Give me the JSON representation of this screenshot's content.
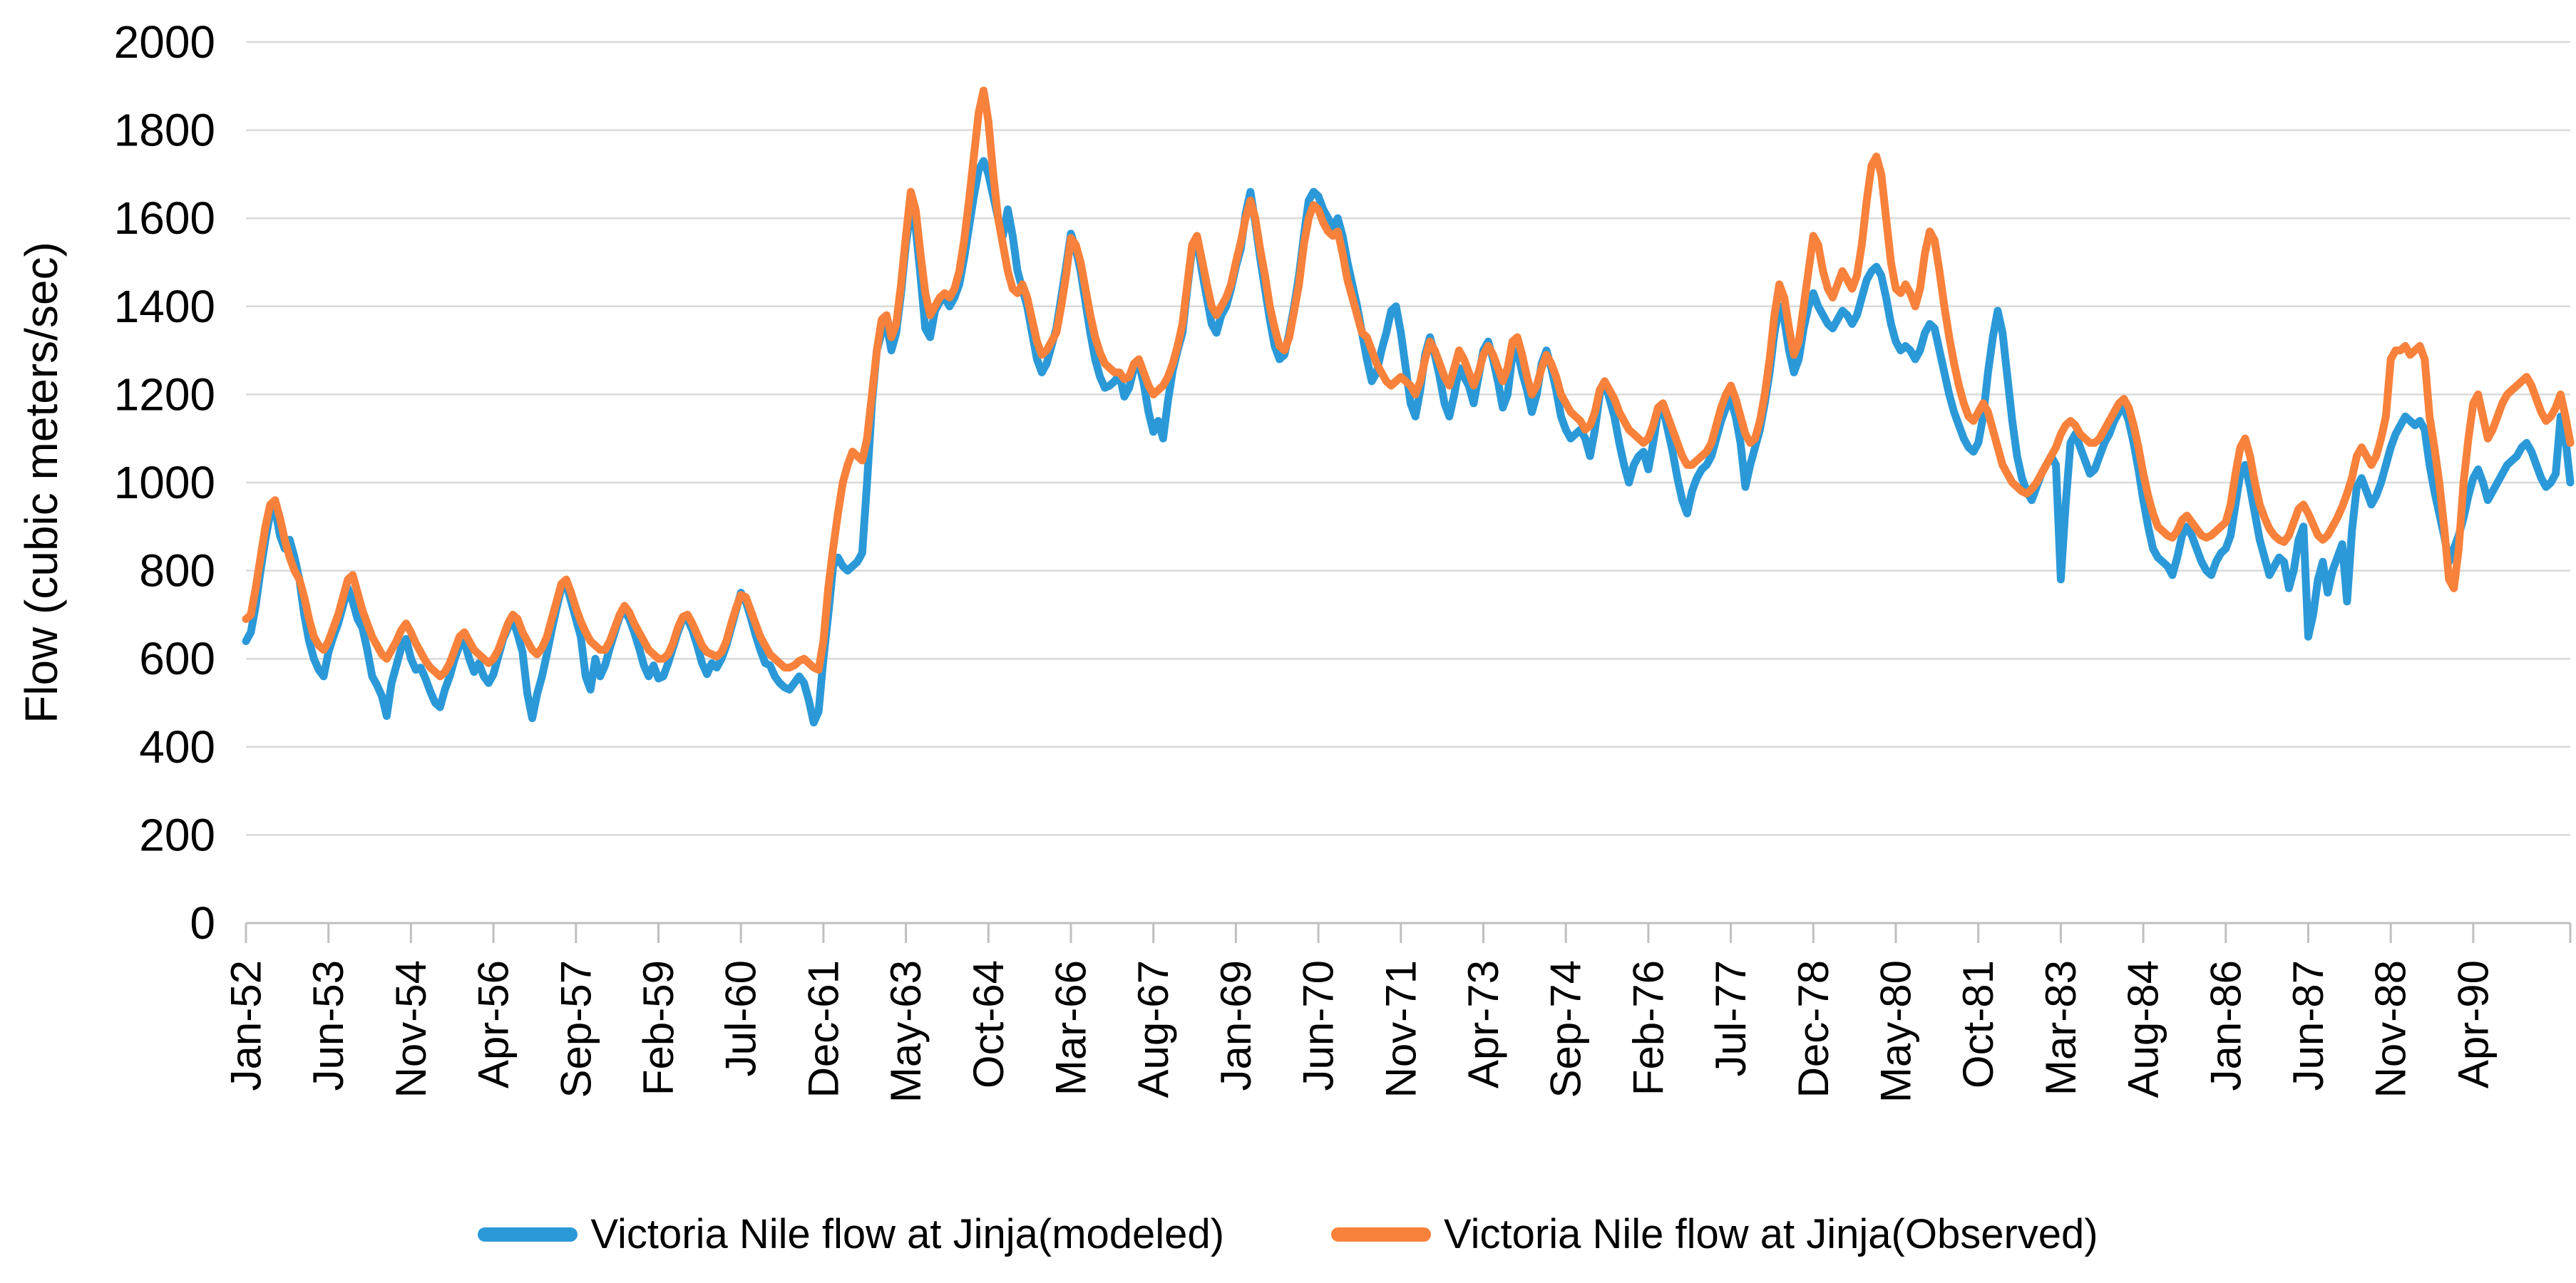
{
  "chart_data": {
    "type": "line",
    "title": "",
    "xlabel": "",
    "ylabel": "Flow (cubic meters/sec)",
    "ylim": [
      0,
      2000
    ],
    "y_tick_step": 200,
    "grid": "horizontal-only",
    "legend_position": "bottom",
    "x_start": "Jan-52",
    "x_frequency": "monthly",
    "x_tick_every_months": 17,
    "x_tick_labels": [
      "Jan-52",
      "Jun-53",
      "Nov-54",
      "Apr-56",
      "Sep-57",
      "Feb-59",
      "Jul-60",
      "Dec-61",
      "May-63",
      "Oct-64",
      "Mar-66",
      "Aug-67",
      "Jan-69",
      "Jun-70",
      "Nov-71",
      "Apr-73",
      "Sep-74",
      "Feb-76",
      "Jul-77",
      "Dec-78",
      "May-80",
      "Oct-81",
      "Mar-83",
      "Aug-84",
      "Jan-86",
      "Jun-87",
      "Nov-88",
      "Apr-90"
    ],
    "axis_color": "#BFBFBF",
    "gridline_color": "#D9D9D9",
    "text_color": "#000000",
    "series": [
      {
        "name": "Victoria Nile flow at Jinja(modeled)",
        "color": "#2B99D8",
        "values": [
          640,
          660,
          720,
          800,
          870,
          930,
          940,
          880,
          850,
          870,
          830,
          780,
          700,
          640,
          600,
          575,
          560,
          615,
          650,
          680,
          720,
          760,
          730,
          690,
          670,
          620,
          560,
          540,
          515,
          470,
          545,
          585,
          625,
          645,
          600,
          575,
          580,
          555,
          525,
          500,
          490,
          530,
          560,
          600,
          630,
          640,
          600,
          570,
          590,
          560,
          545,
          565,
          605,
          645,
          670,
          690,
          655,
          615,
          520,
          465,
          520,
          560,
          610,
          665,
          715,
          760,
          770,
          730,
          690,
          650,
          560,
          530,
          600,
          560,
          585,
          625,
          660,
          695,
          710,
          690,
          660,
          625,
          585,
          560,
          585,
          555,
          560,
          590,
          625,
          660,
          690,
          690,
          665,
          630,
          590,
          565,
          590,
          580,
          600,
          630,
          670,
          710,
          750,
          730,
          695,
          655,
          620,
          590,
          585,
          560,
          545,
          535,
          530,
          545,
          560,
          545,
          505,
          455,
          480,
          600,
          700,
          810,
          830,
          810,
          800,
          810,
          820,
          840,
          1000,
          1180,
          1300,
          1340,
          1360,
          1300,
          1340,
          1430,
          1540,
          1620,
          1580,
          1470,
          1350,
          1330,
          1390,
          1410,
          1420,
          1400,
          1420,
          1450,
          1510,
          1580,
          1650,
          1710,
          1730,
          1700,
          1650,
          1600,
          1560,
          1620,
          1560,
          1480,
          1440,
          1400,
          1340,
          1280,
          1250,
          1270,
          1310,
          1350,
          1420,
          1490,
          1565,
          1530,
          1480,
          1410,
          1340,
          1280,
          1240,
          1215,
          1220,
          1230,
          1245,
          1195,
          1215,
          1260,
          1270,
          1225,
          1160,
          1115,
          1140,
          1100,
          1185,
          1255,
          1300,
          1340,
          1440,
          1530,
          1550,
          1480,
          1420,
          1360,
          1340,
          1380,
          1400,
          1440,
          1490,
          1530,
          1610,
          1660,
          1590,
          1510,
          1440,
          1370,
          1310,
          1280,
          1290,
          1340,
          1400,
          1470,
          1560,
          1640,
          1660,
          1650,
          1620,
          1600,
          1580,
          1600,
          1560,
          1500,
          1450,
          1400,
          1340,
          1280,
          1230,
          1250,
          1300,
          1340,
          1390,
          1400,
          1340,
          1260,
          1180,
          1150,
          1210,
          1290,
          1330,
          1290,
          1240,
          1180,
          1150,
          1200,
          1260,
          1240,
          1220,
          1180,
          1240,
          1300,
          1320,
          1280,
          1230,
          1170,
          1200,
          1290,
          1300,
          1250,
          1210,
          1160,
          1200,
          1270,
          1300,
          1260,
          1210,
          1150,
          1120,
          1100,
          1110,
          1120,
          1100,
          1060,
          1120,
          1200,
          1230,
          1190,
          1150,
          1090,
          1040,
          1000,
          1040,
          1060,
          1070,
          1030,
          1090,
          1160,
          1170,
          1120,
          1070,
          1010,
          960,
          930,
          980,
          1010,
          1030,
          1040,
          1060,
          1100,
          1140,
          1170,
          1190,
          1150,
          1090,
          990,
          1040,
          1080,
          1120,
          1180,
          1250,
          1340,
          1400,
          1370,
          1300,
          1250,
          1280,
          1350,
          1400,
          1430,
          1400,
          1380,
          1360,
          1350,
          1370,
          1390,
          1380,
          1360,
          1380,
          1420,
          1460,
          1480,
          1490,
          1470,
          1420,
          1360,
          1320,
          1300,
          1310,
          1300,
          1280,
          1300,
          1340,
          1360,
          1350,
          1300,
          1250,
          1200,
          1160,
          1130,
          1100,
          1080,
          1070,
          1090,
          1150,
          1250,
          1330,
          1390,
          1340,
          1240,
          1140,
          1060,
          1010,
          980,
          960,
          990,
          1020,
          1040,
          1060,
          1040,
          780,
          950,
          1090,
          1110,
          1080,
          1050,
          1020,
          1030,
          1060,
          1090,
          1110,
          1140,
          1160,
          1170,
          1140,
          1090,
          1030,
          960,
          900,
          850,
          830,
          820,
          810,
          790,
          830,
          880,
          900,
          880,
          850,
          820,
          800,
          790,
          820,
          840,
          850,
          880,
          950,
          1020,
          1040,
          990,
          930,
          870,
          830,
          790,
          810,
          830,
          820,
          760,
          800,
          870,
          900,
          650,
          700,
          780,
          820,
          750,
          800,
          830,
          860,
          730,
          890,
          990,
          1010,
          980,
          950,
          970,
          1000,
          1040,
          1080,
          1110,
          1130,
          1150,
          1140,
          1130,
          1140,
          1120,
          1040,
          980,
          930,
          880,
          820,
          850,
          880,
          920,
          970,
          1010,
          1030,
          1000,
          960,
          980,
          1000,
          1020,
          1040,
          1050,
          1060,
          1080,
          1090,
          1070,
          1040,
          1010,
          990,
          1000,
          1020,
          1150,
          1100,
          1000
        ]
      },
      {
        "name": "Victoria Nile flow at Jinja(Observed)",
        "color": "#F8813B",
        "values": [
          690,
          700,
          760,
          830,
          900,
          950,
          960,
          920,
          870,
          830,
          800,
          780,
          740,
          690,
          650,
          630,
          620,
          640,
          670,
          700,
          740,
          780,
          790,
          750,
          710,
          680,
          650,
          630,
          610,
          600,
          620,
          640,
          665,
          680,
          660,
          635,
          615,
          595,
          580,
          570,
          560,
          570,
          590,
          620,
          650,
          660,
          640,
          620,
          610,
          600,
          590,
          600,
          620,
          650,
          680,
          700,
          690,
          660,
          640,
          620,
          610,
          625,
          650,
          690,
          730,
          770,
          780,
          750,
          715,
          685,
          660,
          640,
          630,
          620,
          620,
          640,
          670,
          700,
          720,
          705,
          680,
          660,
          640,
          620,
          610,
          600,
          600,
          610,
          635,
          670,
          695,
          700,
          680,
          655,
          630,
          615,
          610,
          605,
          615,
          640,
          680,
          715,
          745,
          740,
          710,
          680,
          650,
          630,
          610,
          600,
          590,
          580,
          580,
          585,
          595,
          600,
          590,
          580,
          575,
          640,
          760,
          850,
          930,
          1000,
          1040,
          1070,
          1060,
          1050,
          1100,
          1200,
          1300,
          1370,
          1380,
          1330,
          1360,
          1450,
          1560,
          1660,
          1620,
          1520,
          1430,
          1380,
          1400,
          1420,
          1430,
          1420,
          1440,
          1480,
          1550,
          1640,
          1740,
          1840,
          1890,
          1820,
          1700,
          1600,
          1540,
          1480,
          1440,
          1430,
          1450,
          1420,
          1370,
          1320,
          1290,
          1300,
          1320,
          1340,
          1400,
          1470,
          1555,
          1540,
          1500,
          1440,
          1380,
          1330,
          1295,
          1270,
          1260,
          1250,
          1250,
          1235,
          1240,
          1270,
          1280,
          1250,
          1220,
          1200,
          1210,
          1220,
          1240,
          1270,
          1310,
          1360,
          1450,
          1540,
          1560,
          1505,
          1450,
          1400,
          1380,
          1400,
          1420,
          1450,
          1500,
          1545,
          1600,
          1640,
          1600,
          1530,
          1470,
          1400,
          1350,
          1310,
          1300,
          1330,
          1390,
          1450,
          1540,
          1600,
          1630,
          1620,
          1590,
          1570,
          1560,
          1570,
          1520,
          1460,
          1420,
          1380,
          1340,
          1330,
          1300,
          1270,
          1250,
          1230,
          1220,
          1230,
          1240,
          1230,
          1220,
          1200,
          1230,
          1280,
          1320,
          1300,
          1270,
          1240,
          1220,
          1260,
          1300,
          1280,
          1250,
          1220,
          1250,
          1290,
          1310,
          1290,
          1260,
          1230,
          1260,
          1320,
          1330,
          1290,
          1240,
          1200,
          1220,
          1260,
          1290,
          1270,
          1240,
          1200,
          1180,
          1160,
          1150,
          1140,
          1120,
          1130,
          1160,
          1210,
          1230,
          1210,
          1190,
          1160,
          1140,
          1120,
          1110,
          1100,
          1090,
          1100,
          1130,
          1170,
          1180,
          1150,
          1120,
          1090,
          1060,
          1040,
          1040,
          1050,
          1060,
          1070,
          1090,
          1130,
          1170,
          1200,
          1220,
          1190,
          1150,
          1110,
          1090,
          1100,
          1140,
          1200,
          1280,
          1380,
          1450,
          1420,
          1350,
          1290,
          1320,
          1400,
          1480,
          1560,
          1540,
          1480,
          1440,
          1420,
          1450,
          1480,
          1460,
          1440,
          1470,
          1540,
          1640,
          1720,
          1740,
          1700,
          1600,
          1500,
          1440,
          1430,
          1450,
          1430,
          1400,
          1440,
          1520,
          1570,
          1550,
          1480,
          1400,
          1330,
          1270,
          1220,
          1180,
          1150,
          1140,
          1160,
          1180,
          1160,
          1120,
          1080,
          1040,
          1020,
          1000,
          990,
          980,
          975,
          985,
          1000,
          1020,
          1040,
          1060,
          1080,
          1110,
          1130,
          1140,
          1130,
          1110,
          1100,
          1090,
          1090,
          1100,
          1120,
          1140,
          1160,
          1180,
          1190,
          1170,
          1130,
          1080,
          1020,
          970,
          930,
          900,
          890,
          880,
          875,
          890,
          915,
          925,
          910,
          895,
          880,
          875,
          880,
          890,
          900,
          910,
          950,
          1020,
          1080,
          1100,
          1060,
          1000,
          950,
          920,
          895,
          880,
          870,
          865,
          880,
          910,
          940,
          950,
          930,
          905,
          880,
          870,
          880,
          900,
          920,
          945,
          975,
          1010,
          1060,
          1080,
          1060,
          1040,
          1060,
          1100,
          1150,
          1280,
          1300,
          1300,
          1310,
          1290,
          1300,
          1310,
          1280,
          1150,
          1080,
          1000,
          900,
          780,
          760,
          850,
          1000,
          1100,
          1180,
          1200,
          1150,
          1100,
          1120,
          1150,
          1180,
          1200,
          1210,
          1220,
          1230,
          1240,
          1220,
          1190,
          1160,
          1140,
          1150,
          1170,
          1200,
          1150,
          1090
        ]
      }
    ]
  }
}
